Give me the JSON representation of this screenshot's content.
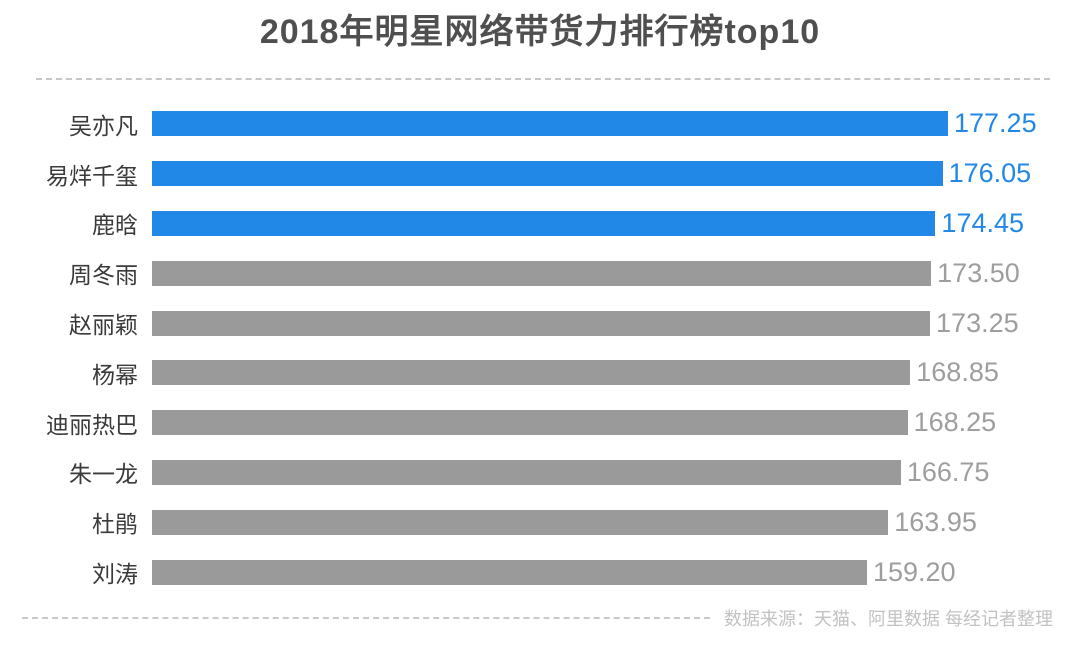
{
  "title": "2018年明星网络带货力排行榜top10",
  "footer": {
    "source_note": "数据来源：天猫、阿里数据  每经记者整理"
  },
  "chart_data": {
    "type": "bar",
    "orientation": "horizontal",
    "title": "2018年明星网络带货力排行榜top10",
    "categories": [
      "吴亦凡",
      "易烊千玺",
      "鹿晗",
      "周冬雨",
      "赵丽颖",
      "杨幂",
      "迪丽热巴",
      "朱一龙",
      "杜鹃",
      "刘涛"
    ],
    "values": [
      177.25,
      176.05,
      174.45,
      173.5,
      173.25,
      168.85,
      168.25,
      166.75,
      163.95,
      159.2
    ],
    "value_labels": [
      "177.25",
      "176.05",
      "174.45",
      "173.50",
      "173.25",
      "168.85",
      "168.25",
      "166.75",
      "163.95",
      "159.20"
    ],
    "highlighted_top_n": 3,
    "xlim": [
      0,
      177.25
    ],
    "grid": false,
    "legend": false,
    "colors": {
      "highlight_bar": "#2288e8",
      "default_bar": "#9a9a9a",
      "highlight_value_text": "#2288e8",
      "default_value_text": "#9e9e9e"
    }
  }
}
